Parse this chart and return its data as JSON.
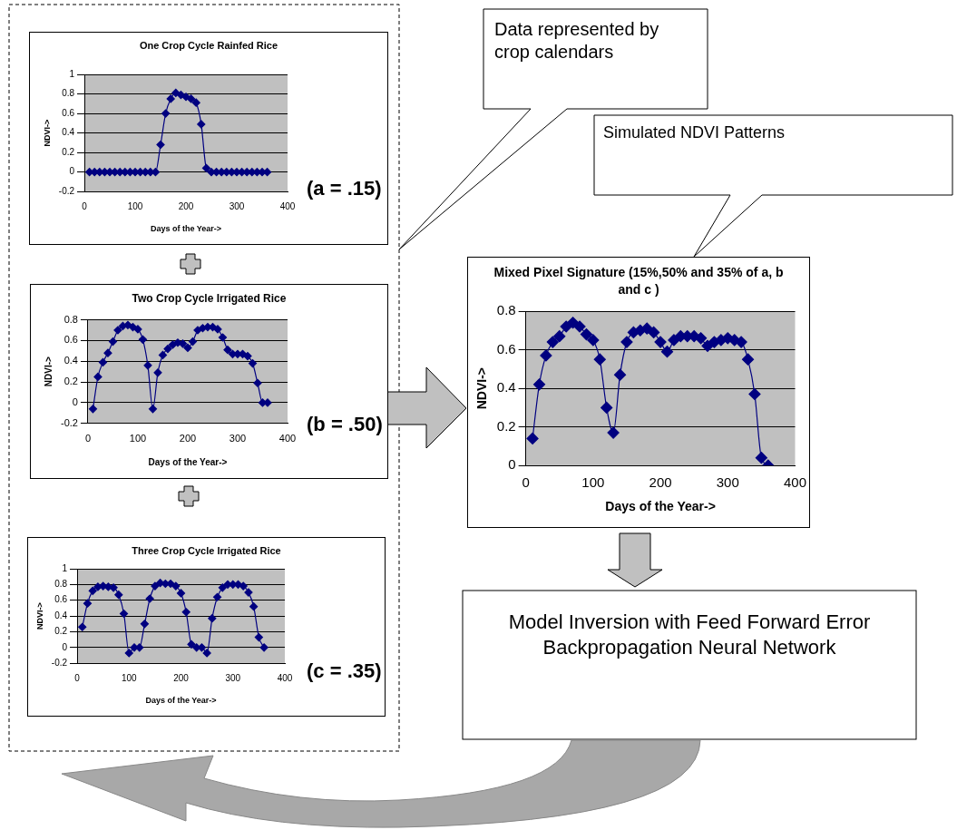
{
  "chart_data": [
    {
      "type": "line",
      "title": "One Crop Cycle Rainfed Rice",
      "xlabel": "Days of the Year->",
      "ylabel": "NDVI->",
      "annotations": [
        "(a = .15)"
      ],
      "x": [
        10,
        20,
        30,
        40,
        50,
        60,
        70,
        80,
        90,
        100,
        110,
        120,
        130,
        140,
        150,
        160,
        170,
        180,
        190,
        200,
        210,
        220,
        230,
        240,
        250,
        260,
        270,
        280,
        290,
        300,
        310,
        320,
        330,
        340,
        350,
        360
      ],
      "series": [
        {
          "color": "#000080",
          "values": [
            0,
            0,
            0,
            0,
            0,
            0,
            0,
            0,
            0,
            0,
            0,
            0,
            0,
            0,
            0.28,
            0.6,
            0.75,
            0.81,
            0.79,
            0.77,
            0.75,
            0.71,
            0.49,
            0.04,
            0,
            0,
            0,
            0,
            0,
            0,
            0,
            0,
            0,
            0,
            0,
            0
          ]
        }
      ],
      "xlim": [
        0,
        400
      ],
      "xticks": [
        0,
        100,
        200,
        300,
        400
      ],
      "ylim": [
        -0.2,
        1
      ],
      "yticks": [
        -0.2,
        0,
        0.2,
        0.4,
        0.6,
        0.8,
        1
      ],
      "grid": "y",
      "marker": "diamond",
      "line_style": "solid"
    },
    {
      "type": "line",
      "title": "Two Crop Cycle Irrigated Rice",
      "xlabel": "Days of the Year->",
      "ylabel": "NDVI->",
      "annotations": [
        "(b = .50)"
      ],
      "x": [
        10,
        20,
        30,
        40,
        50,
        60,
        70,
        80,
        90,
        100,
        110,
        120,
        130,
        140,
        150,
        160,
        170,
        180,
        190,
        200,
        210,
        220,
        230,
        240,
        250,
        260,
        270,
        280,
        290,
        300,
        310,
        320,
        330,
        340,
        350,
        360
      ],
      "series": [
        {
          "color": "#000080",
          "values": [
            -0.06,
            0.25,
            0.39,
            0.48,
            0.59,
            0.7,
            0.74,
            0.75,
            0.73,
            0.71,
            0.61,
            0.36,
            -0.06,
            0.29,
            0.46,
            0.52,
            0.56,
            0.58,
            0.57,
            0.53,
            0.59,
            0.7,
            0.72,
            0.73,
            0.73,
            0.71,
            0.63,
            0.51,
            0.47,
            0.47,
            0.47,
            0.45,
            0.38,
            0.19,
            0,
            0
          ]
        }
      ],
      "xlim": [
        0,
        400
      ],
      "xticks": [
        0,
        100,
        200,
        300,
        400
      ],
      "ylim": [
        -0.2,
        0.8
      ],
      "yticks": [
        -0.2,
        0,
        0.2,
        0.4,
        0.6,
        0.8
      ],
      "grid": "y",
      "marker": "diamond",
      "line_style": "solid"
    },
    {
      "type": "line",
      "title": "Three Crop Cycle Irrigated Rice",
      "xlabel": "Days of the Year->",
      "ylabel": "NDVI->",
      "annotations": [
        "(c = .35)"
      ],
      "x": [
        10,
        20,
        30,
        40,
        50,
        60,
        70,
        80,
        90,
        100,
        110,
        120,
        130,
        140,
        150,
        160,
        170,
        180,
        190,
        200,
        210,
        220,
        230,
        240,
        250,
        260,
        270,
        280,
        290,
        300,
        310,
        320,
        330,
        340,
        350,
        360
      ],
      "series": [
        {
          "color": "#000080",
          "values": [
            0.26,
            0.56,
            0.72,
            0.77,
            0.78,
            0.77,
            0.76,
            0.67,
            0.43,
            -0.07,
            0,
            0,
            0.3,
            0.62,
            0.78,
            0.82,
            0.81,
            0.81,
            0.78,
            0.69,
            0.45,
            0.04,
            0,
            0,
            -0.07,
            0.37,
            0.64,
            0.76,
            0.8,
            0.8,
            0.8,
            0.78,
            0.7,
            0.52,
            0.13,
            0
          ]
        }
      ],
      "xlim": [
        0,
        400
      ],
      "xticks": [
        0,
        100,
        200,
        300,
        400
      ],
      "ylim": [
        -0.2,
        1
      ],
      "yticks": [
        -0.2,
        0,
        0.2,
        0.4,
        0.6,
        0.8,
        1
      ],
      "grid": "y",
      "marker": "diamond",
      "line_style": "solid"
    },
    {
      "type": "line",
      "title": "Mixed Pixel Signature (15%,50% and 35% of a, b and c )",
      "xlabel": "Days of the Year->",
      "ylabel": "NDVI->",
      "x": [
        10,
        20,
        30,
        40,
        50,
        60,
        70,
        80,
        90,
        100,
        110,
        120,
        130,
        140,
        150,
        160,
        170,
        180,
        190,
        200,
        210,
        220,
        230,
        240,
        250,
        260,
        270,
        280,
        290,
        300,
        310,
        320,
        330,
        340,
        350,
        360
      ],
      "series": [
        {
          "color": "#000080",
          "values": [
            0.14,
            0.42,
            0.57,
            0.64,
            0.67,
            0.72,
            0.74,
            0.72,
            0.68,
            0.65,
            0.55,
            0.3,
            0.17,
            0.47,
            0.64,
            0.69,
            0.7,
            0.71,
            0.69,
            0.64,
            0.59,
            0.65,
            0.67,
            0.67,
            0.67,
            0.66,
            0.62,
            0.64,
            0.65,
            0.66,
            0.65,
            0.64,
            0.55,
            0.37,
            0.04,
            0
          ]
        }
      ],
      "xlim": [
        0,
        400
      ],
      "xticks": [
        0,
        100,
        200,
        300,
        400
      ],
      "ylim": [
        0,
        0.8
      ],
      "yticks": [
        0,
        0.2,
        0.4,
        0.6,
        0.8
      ],
      "grid": "y",
      "marker": "diamond",
      "line_style": "solid"
    },
    {
      "type": "other",
      "annotations": [
        "Data represented by crop calendars",
        "Simulated NDVI Patterns",
        "Model Inversion with Feed Forward Error Backpropagation Neural Network"
      ]
    }
  ]
}
